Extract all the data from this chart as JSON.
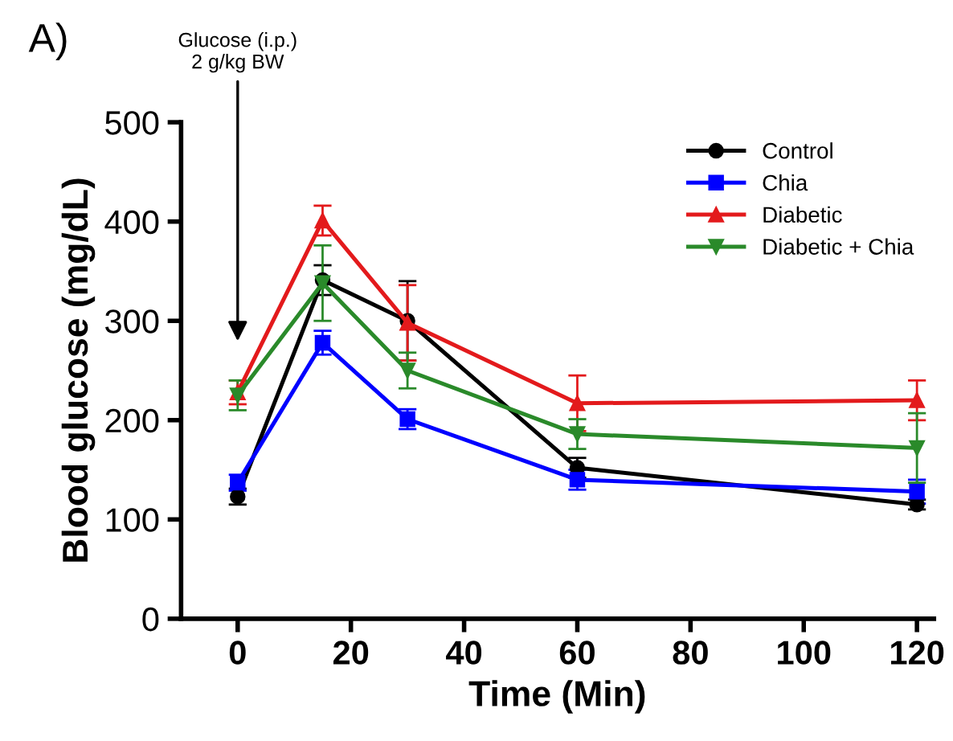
{
  "chart_data": {
    "type": "line",
    "title": "A)",
    "xlabel": "Time (Min)",
    "ylabel": "Blood glucose (mg/dL)",
    "x": [
      0,
      15,
      30,
      60,
      120
    ],
    "series": [
      {
        "name": "Control",
        "color": "#000000",
        "marker": "circle",
        "values": [
          123,
          341,
          300,
          152,
          115
        ],
        "errors": [
          8,
          15,
          40,
          10,
          5
        ]
      },
      {
        "name": "Chia",
        "color": "#0000ff",
        "marker": "square",
        "values": [
          137,
          278,
          201,
          140,
          128
        ],
        "errors": [
          8,
          12,
          10,
          10,
          12
        ]
      },
      {
        "name": "Diabetic",
        "color": "#e31a1c",
        "marker": "triangle",
        "values": [
          228,
          401,
          298,
          217,
          220
        ],
        "errors": [
          12,
          15,
          38,
          28,
          20
        ]
      },
      {
        "name": "Diabetic + Chia",
        "color": "#2a8a2a",
        "marker": "triangle_down",
        "values": [
          225,
          338,
          250,
          186,
          172
        ],
        "errors": [
          15,
          38,
          18,
          15,
          35
        ]
      }
    ],
    "annotations": [
      "Glucose (i.p.)\n2 g/kg BW"
    ],
    "xlim": [
      -10,
      123
    ],
    "xticks": [
      0,
      20,
      40,
      60,
      80,
      100,
      120
    ],
    "ylim": [
      0,
      500
    ],
    "yticks": [
      0,
      100,
      200,
      300,
      400,
      500
    ],
    "grid": false,
    "legend": "top right",
    "line_style": "solid"
  }
}
